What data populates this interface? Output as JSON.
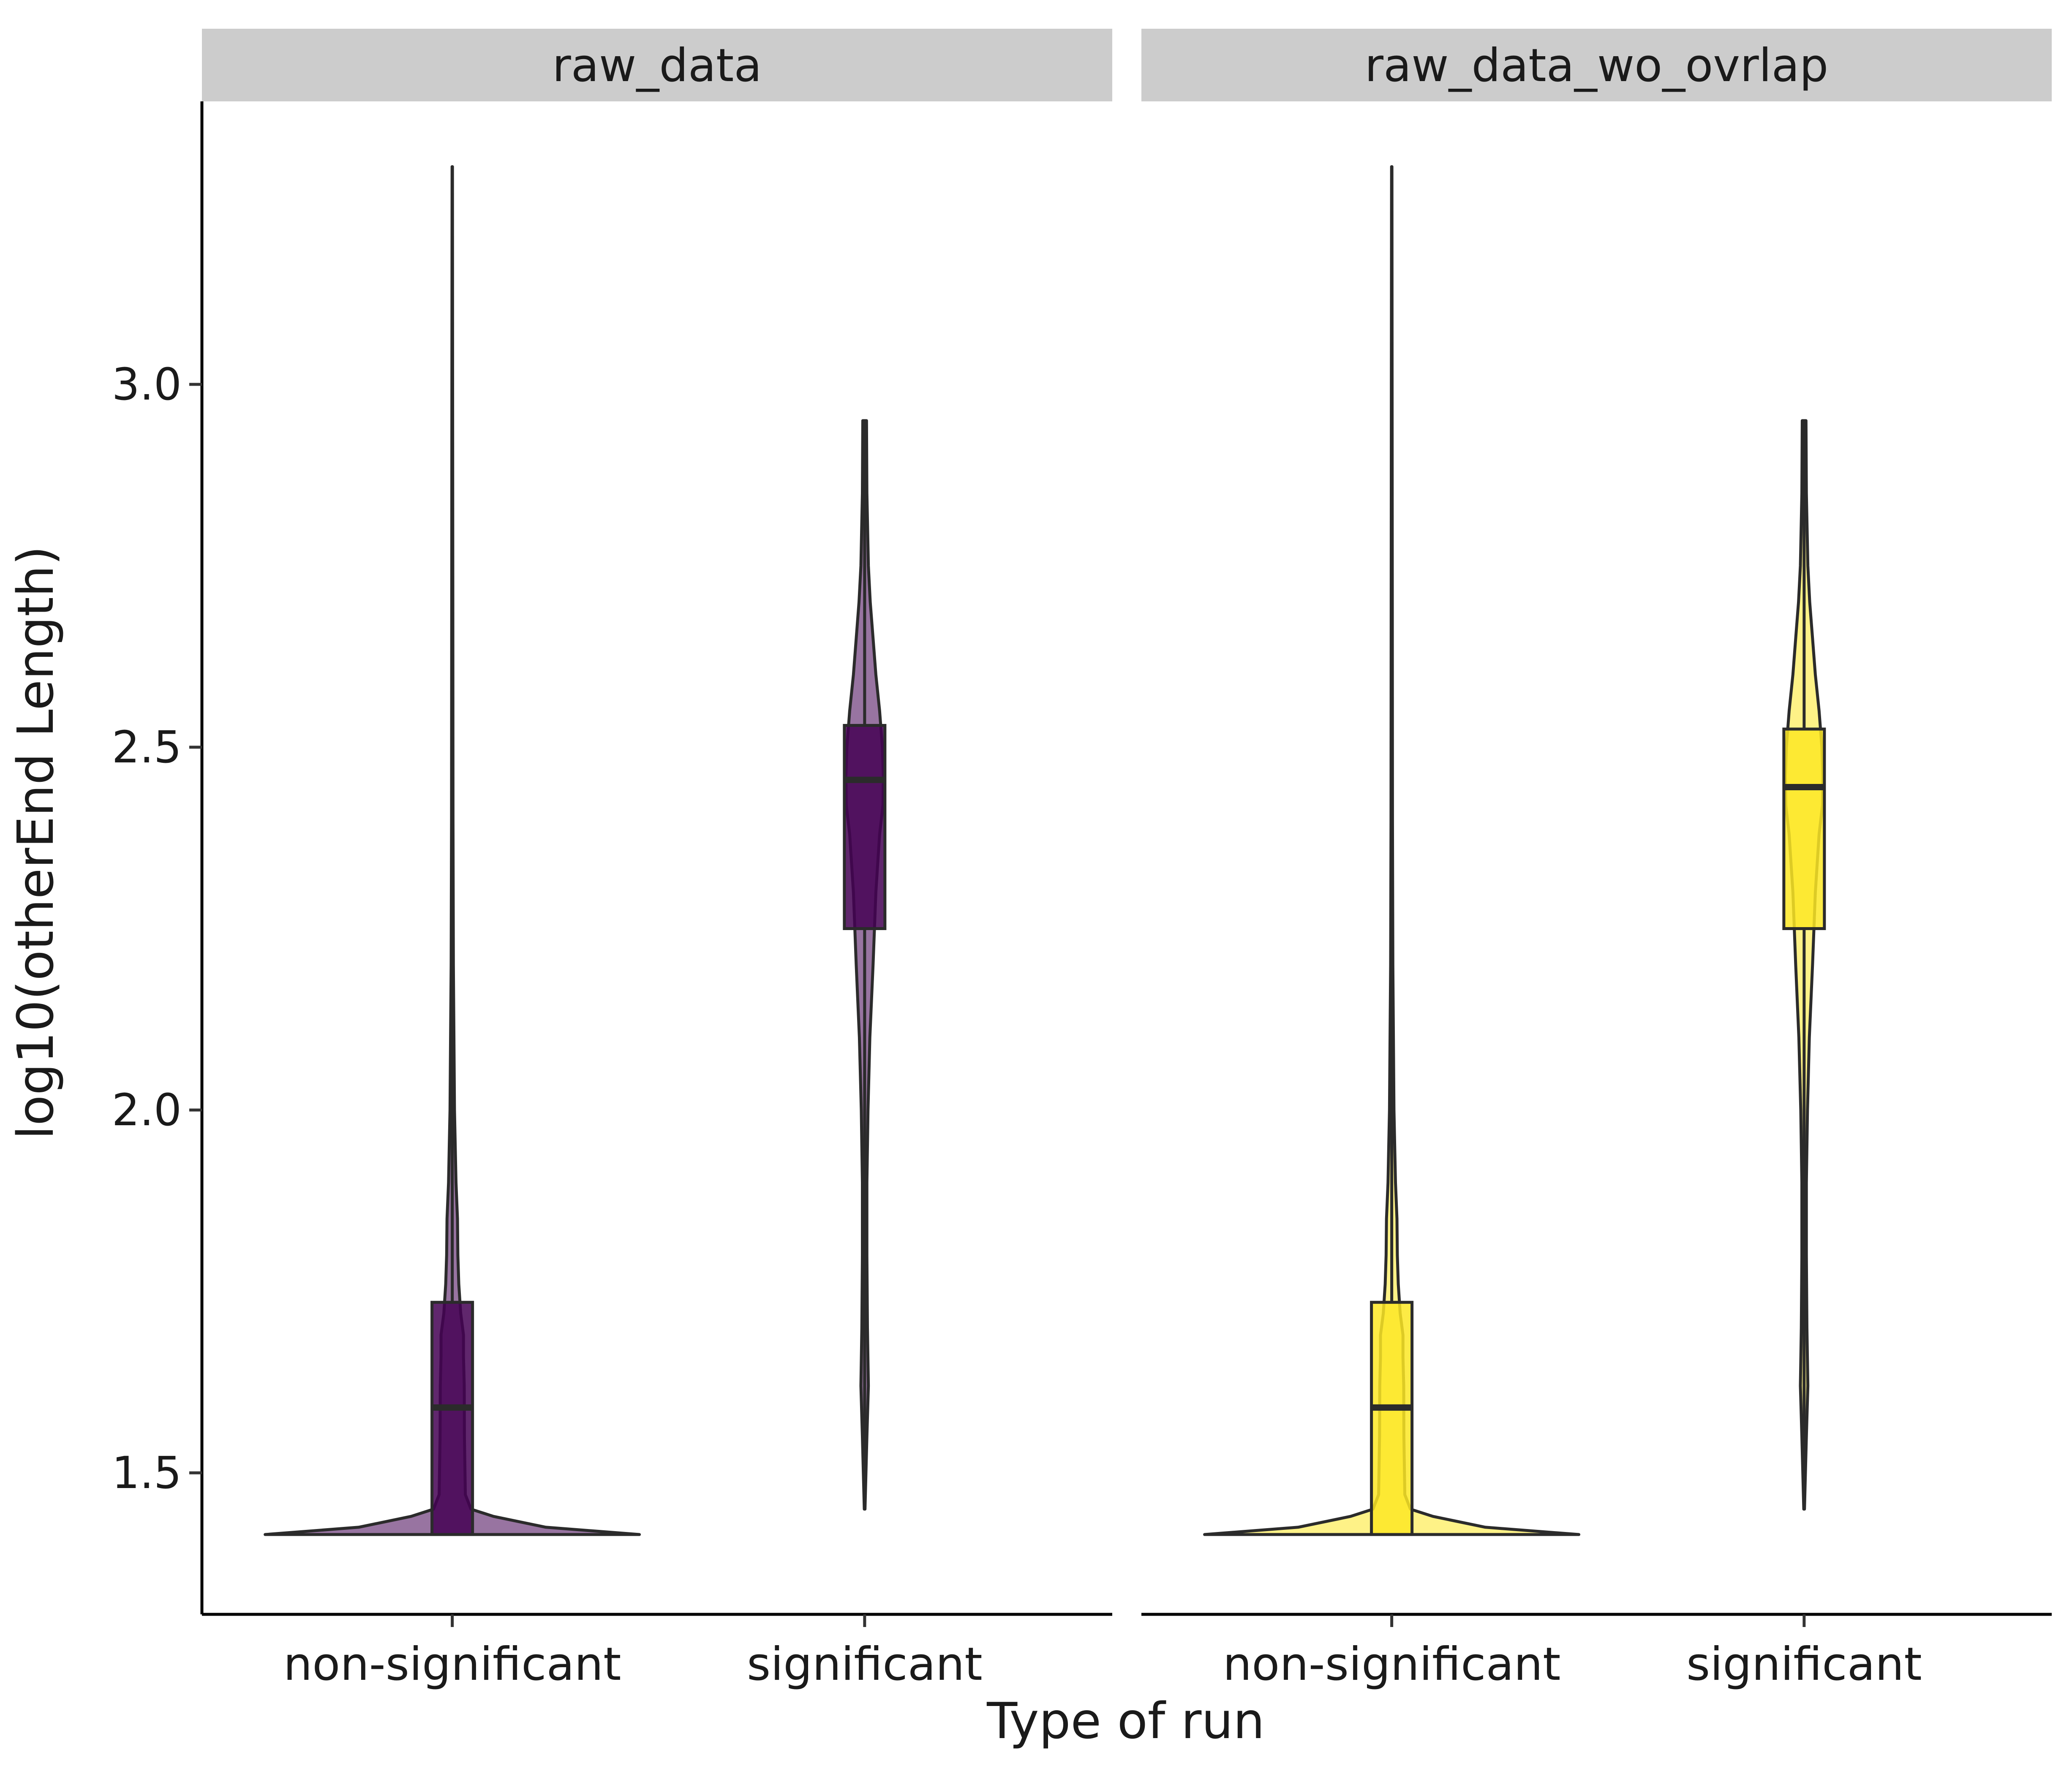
{
  "chart_data": {
    "type": "violin",
    "xlabel": "Type of run",
    "ylabel": "log10(otherEnd Length)",
    "ylim": [
      1.305,
      3.39
    ],
    "yticks": [
      1.5,
      2.0,
      2.5,
      3.0
    ],
    "ytick_labels": [
      "1.5",
      "2.0",
      "2.5",
      "3.0"
    ],
    "categories": [
      "non-significant",
      "significant"
    ],
    "grid": false,
    "legend": "none",
    "panels": [
      {
        "strip_label": "raw_data",
        "fill_color": "#440154",
        "groups": [
          {
            "category": "non-significant",
            "min": 1.415,
            "q1": 1.415,
            "median": 1.59,
            "q3": 1.735,
            "max": 3.3,
            "density": [
              [
                1.415,
                1.0
              ],
              [
                1.425,
                0.5
              ],
              [
                1.44,
                0.22
              ],
              [
                1.45,
                0.1
              ],
              [
                1.47,
                0.07
              ],
              [
                1.55,
                0.065
              ],
              [
                1.62,
                0.064
              ],
              [
                1.66,
                0.06
              ],
              [
                1.69,
                0.06
              ],
              [
                1.72,
                0.045
              ],
              [
                1.76,
                0.035
              ],
              [
                1.8,
                0.03
              ],
              [
                1.85,
                0.028
              ],
              [
                1.9,
                0.02
              ],
              [
                1.95,
                0.016
              ],
              [
                2.0,
                0.012
              ],
              [
                2.1,
                0.009
              ],
              [
                2.2,
                0.006
              ],
              [
                2.4,
                0.004
              ],
              [
                2.7,
                0.003
              ],
              [
                3.0,
                0.002
              ],
              [
                3.3,
                0.001
              ]
            ]
          },
          {
            "category": "significant",
            "min": 1.45,
            "q1": 2.25,
            "median": 2.455,
            "q3": 2.53,
            "max": 2.95,
            "density": [
              [
                1.45,
                0.002
              ],
              [
                1.55,
                0.012
              ],
              [
                1.62,
                0.02
              ],
              [
                1.7,
                0.015
              ],
              [
                1.8,
                0.012
              ],
              [
                1.9,
                0.012
              ],
              [
                2.0,
                0.018
              ],
              [
                2.1,
                0.028
              ],
              [
                2.2,
                0.045
              ],
              [
                2.3,
                0.06
              ],
              [
                2.38,
                0.08
              ],
              [
                2.42,
                0.098
              ],
              [
                2.46,
                0.1
              ],
              [
                2.5,
                0.095
              ],
              [
                2.55,
                0.08
              ],
              [
                2.6,
                0.06
              ],
              [
                2.65,
                0.045
              ],
              [
                2.7,
                0.03
              ],
              [
                2.75,
                0.02
              ],
              [
                2.85,
                0.012
              ],
              [
                2.95,
                0.01
              ]
            ]
          }
        ]
      },
      {
        "strip_label": "raw_data_wo_ovrlap",
        "fill_color": "#FDE725",
        "groups": [
          {
            "category": "non-significant",
            "min": 1.415,
            "q1": 1.415,
            "median": 1.59,
            "q3": 1.735,
            "max": 3.3,
            "density": [
              [
                1.415,
                1.0
              ],
              [
                1.425,
                0.5
              ],
              [
                1.44,
                0.22
              ],
              [
                1.45,
                0.1
              ],
              [
                1.47,
                0.07
              ],
              [
                1.55,
                0.065
              ],
              [
                1.62,
                0.064
              ],
              [
                1.66,
                0.06
              ],
              [
                1.69,
                0.06
              ],
              [
                1.72,
                0.045
              ],
              [
                1.76,
                0.035
              ],
              [
                1.8,
                0.03
              ],
              [
                1.85,
                0.028
              ],
              [
                1.9,
                0.02
              ],
              [
                1.95,
                0.016
              ],
              [
                2.0,
                0.012
              ],
              [
                2.1,
                0.009
              ],
              [
                2.2,
                0.006
              ],
              [
                2.4,
                0.004
              ],
              [
                2.7,
                0.003
              ],
              [
                3.0,
                0.002
              ],
              [
                3.3,
                0.001
              ]
            ]
          },
          {
            "category": "significant",
            "min": 1.45,
            "q1": 2.25,
            "median": 2.445,
            "q3": 2.525,
            "max": 2.95,
            "density": [
              [
                1.45,
                0.002
              ],
              [
                1.55,
                0.012
              ],
              [
                1.62,
                0.02
              ],
              [
                1.7,
                0.015
              ],
              [
                1.8,
                0.012
              ],
              [
                1.9,
                0.012
              ],
              [
                2.0,
                0.018
              ],
              [
                2.1,
                0.028
              ],
              [
                2.2,
                0.045
              ],
              [
                2.3,
                0.06
              ],
              [
                2.38,
                0.08
              ],
              [
                2.42,
                0.098
              ],
              [
                2.46,
                0.1
              ],
              [
                2.5,
                0.095
              ],
              [
                2.55,
                0.08
              ],
              [
                2.6,
                0.06
              ],
              [
                2.65,
                0.045
              ],
              [
                2.7,
                0.03
              ],
              [
                2.75,
                0.02
              ],
              [
                2.85,
                0.012
              ],
              [
                2.95,
                0.01
              ]
            ]
          }
        ]
      }
    ]
  }
}
